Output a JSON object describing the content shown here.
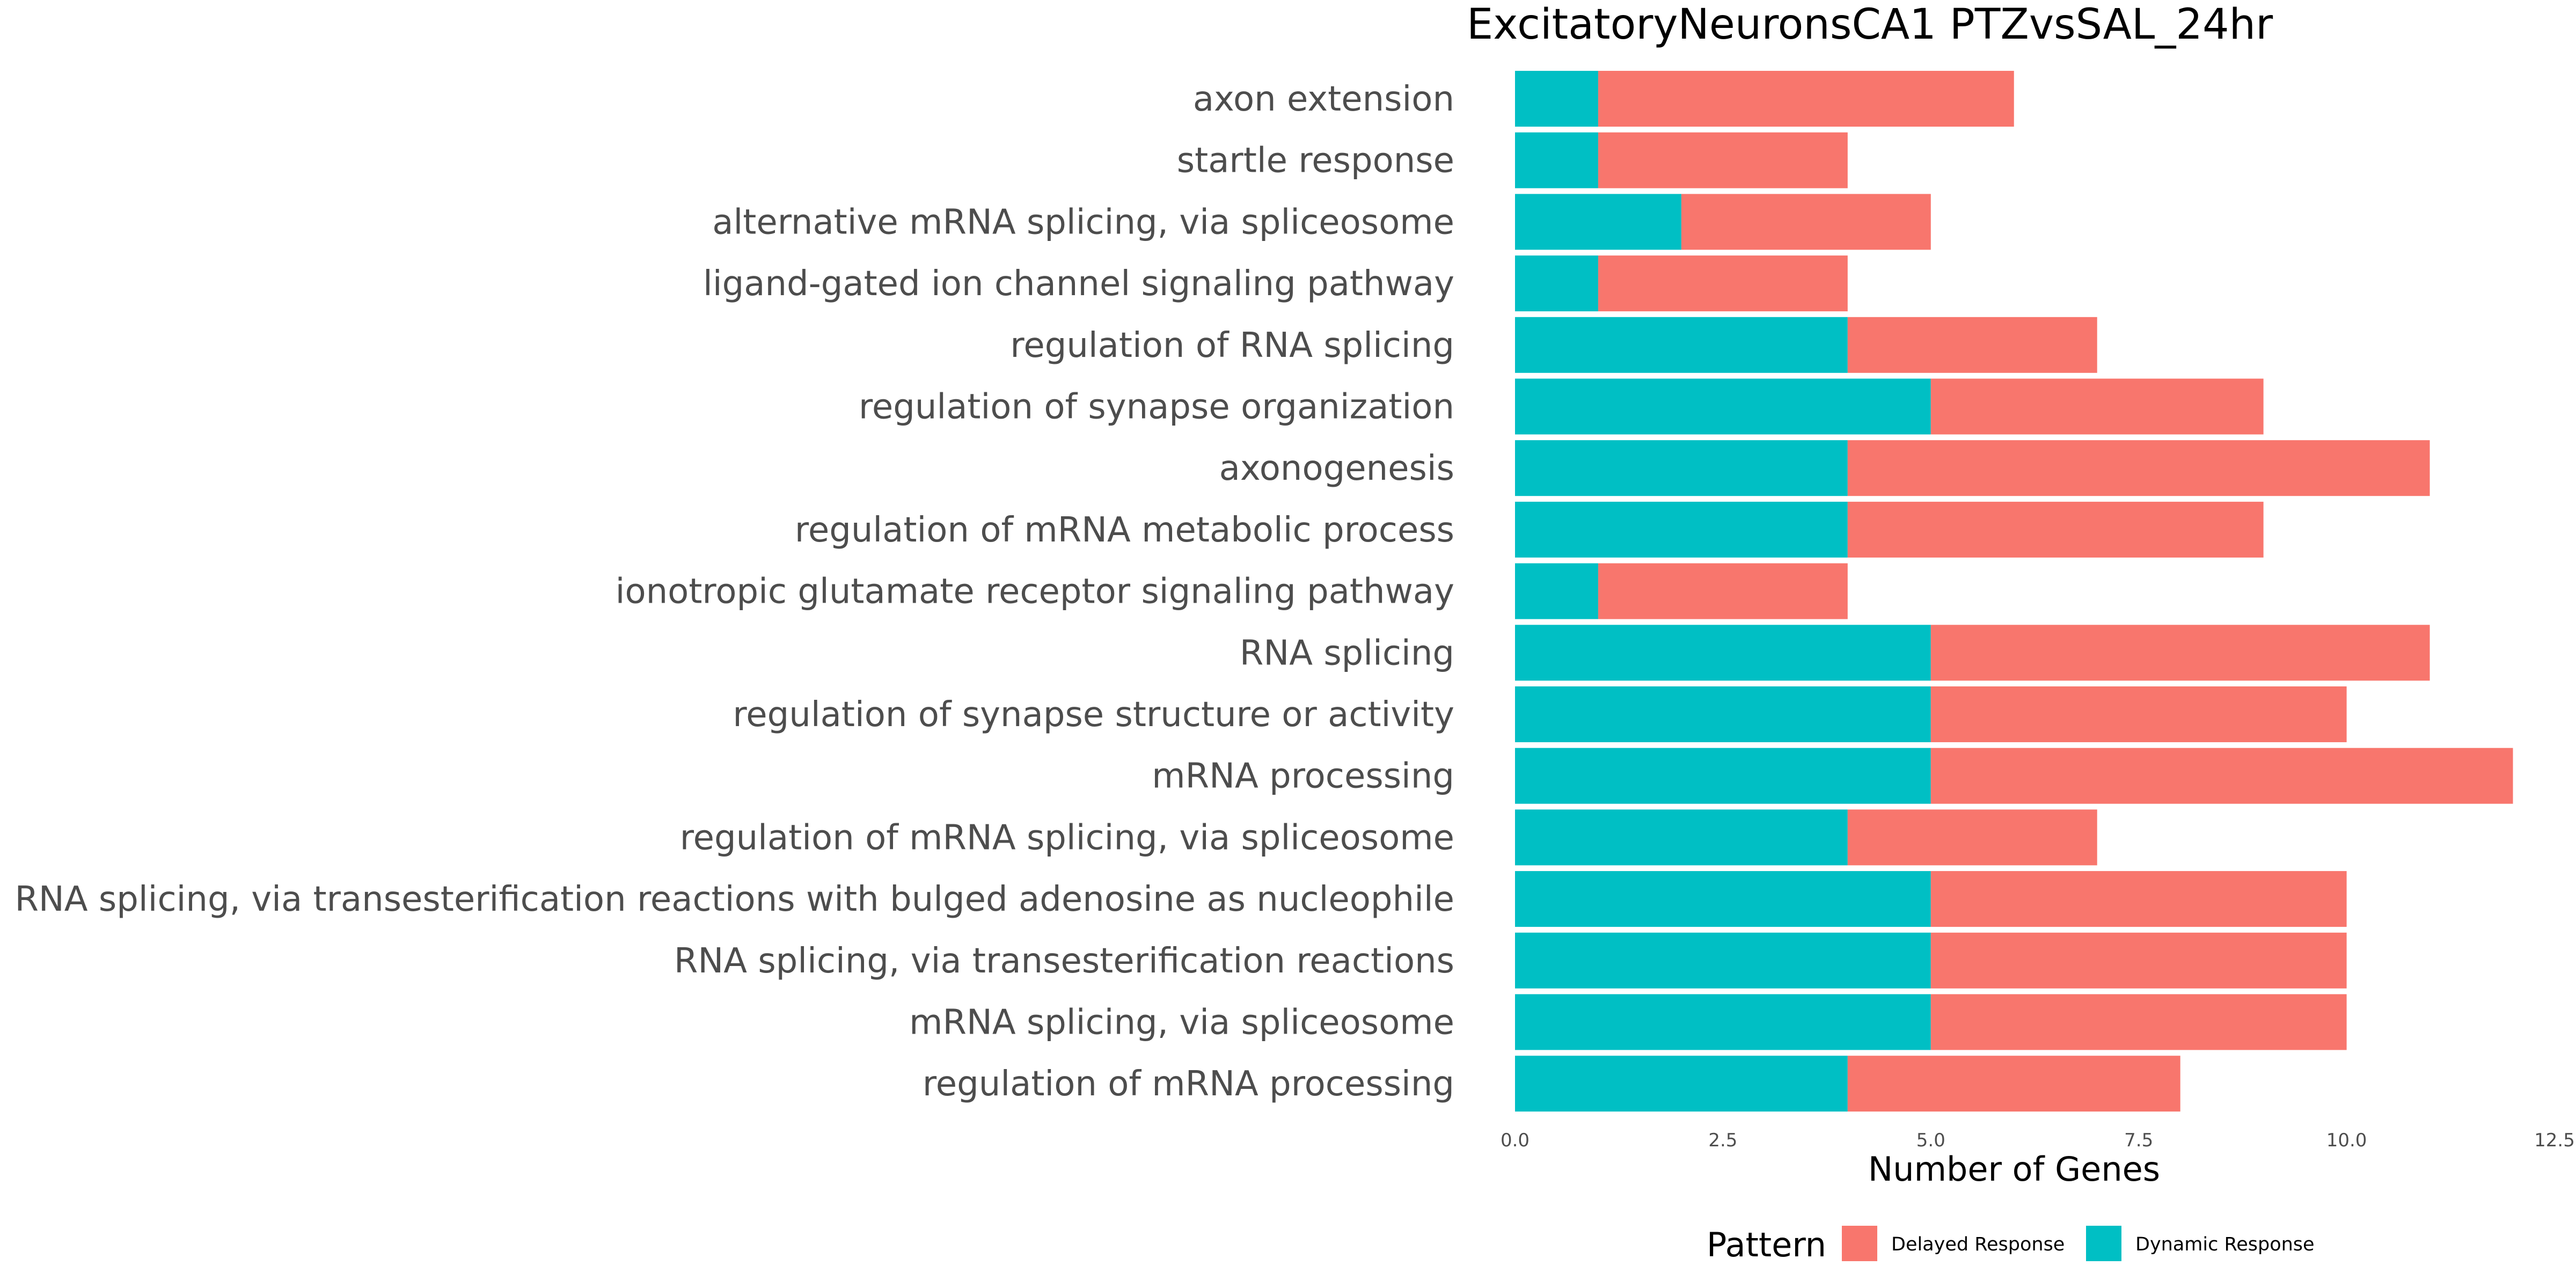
{
  "chart_data": {
    "type": "bar",
    "orientation": "horizontal",
    "stacked": true,
    "title": "ExcitatoryNeuronsCA1 PTZvsSAL_24hr",
    "xlabel": "Number of Genes",
    "ylabel": "",
    "xlim": [
      0,
      12.5
    ],
    "xticks": [
      "0.0",
      "2.5",
      "5.0",
      "7.5",
      "10.0",
      "12.5"
    ],
    "grid": false,
    "legend": {
      "title": "Pattern",
      "position": "bottom"
    },
    "categories": [
      "axon extension",
      "startle response",
      "alternative mRNA splicing, via spliceosome",
      "ligand-gated ion channel signaling pathway",
      "regulation of RNA splicing",
      "regulation of synapse organization",
      "axonogenesis",
      "regulation of mRNA metabolic process",
      "ionotropic glutamate receptor signaling pathway",
      "RNA splicing",
      "regulation of synapse structure or activity",
      "mRNA processing",
      "regulation of mRNA splicing, via spliceosome",
      "RNA splicing, via transesterification reactions with bulged adenosine as nucleophile",
      "RNA splicing, via transesterification reactions",
      "mRNA splicing, via spliceosome",
      "regulation of mRNA processing"
    ],
    "series": [
      {
        "name": "Dynamic Response",
        "color": "#00BFC4",
        "values": [
          1,
          1,
          2,
          1,
          4,
          5,
          4,
          4,
          1,
          5,
          5,
          5,
          4,
          5,
          5,
          5,
          4
        ]
      },
      {
        "name": "Delayed Response",
        "color": "#F8766D",
        "values": [
          5,
          3,
          3,
          3,
          3,
          4,
          7,
          5,
          3,
          6,
          5,
          7,
          3,
          5,
          5,
          5,
          4
        ]
      }
    ],
    "legend_order": [
      "Delayed Response",
      "Dynamic Response"
    ]
  }
}
